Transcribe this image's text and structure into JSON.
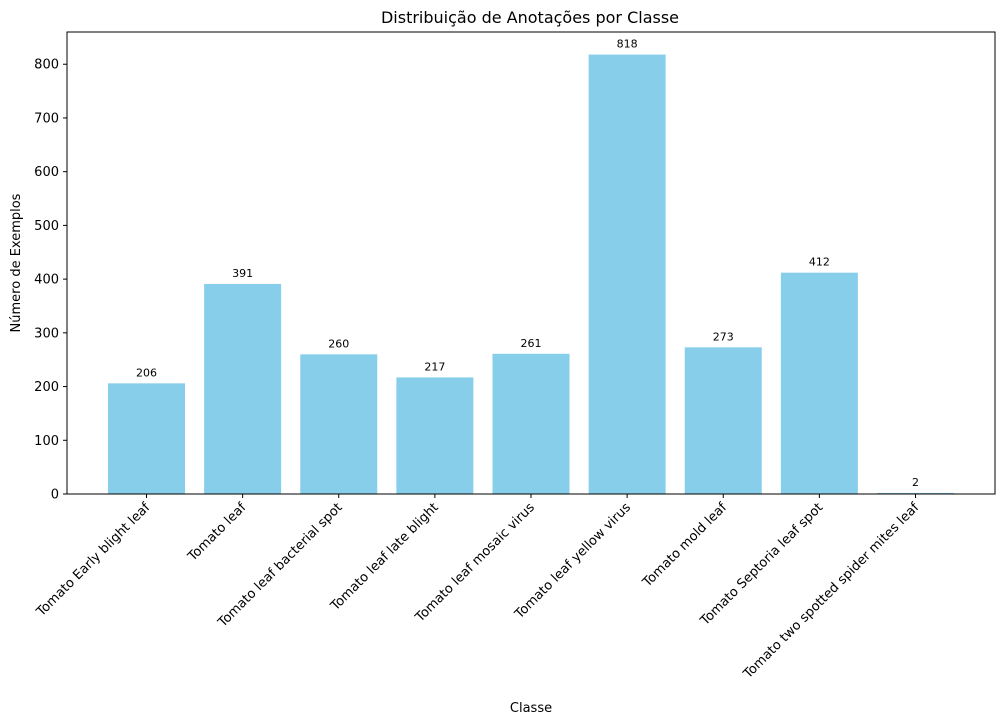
{
  "chart_data": {
    "type": "bar",
    "title": "Distribuição de Anotações por Classe",
    "xlabel": "Classe",
    "ylabel": "Número de Exemplos",
    "categories": [
      "Tomato Early blight leaf",
      "Tomato leaf",
      "Tomato leaf bacterial spot",
      "Tomato leaf late blight",
      "Tomato leaf mosaic virus",
      "Tomato leaf yellow virus",
      "Tomato mold leaf",
      "Tomato Septoria leaf spot",
      "Tomato two spotted spider mites leaf"
    ],
    "values": [
      206,
      391,
      260,
      217,
      261,
      818,
      273,
      412,
      2
    ],
    "data_labels": [
      "206",
      "391",
      "260",
      "217",
      "261",
      "818",
      "273",
      "412",
      "2"
    ],
    "yticks": [
      0,
      100,
      200,
      300,
      400,
      500,
      600,
      700,
      800
    ],
    "ytick_labels": [
      "0",
      "100",
      "200",
      "300",
      "400",
      "500",
      "600",
      "700",
      "800"
    ],
    "ylim": [
      0,
      860
    ],
    "bar_color": "#87CEEB",
    "grid": false,
    "legend": false
  }
}
